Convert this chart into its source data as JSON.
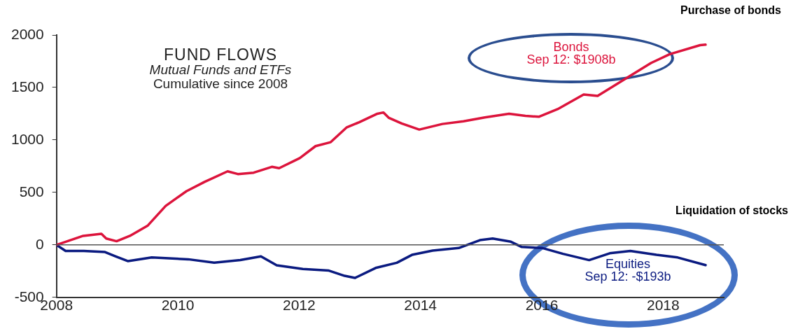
{
  "chart_data": {
    "type": "line",
    "title": "FUND FLOWS",
    "subtitle": "Mutual Funds and ETFs",
    "annotations": [
      "Cumulative since 2008",
      "Sep 12: $1908b",
      "Sep 12: -$193b",
      "Purchase of bonds",
      "Liquidation of stocks"
    ],
    "xlim": [
      2008,
      2019
    ],
    "xticks": [
      2008,
      2010,
      2012,
      2014,
      2016,
      2018
    ],
    "ylim": [
      -500,
      2000
    ],
    "yticks": [
      -500,
      0,
      500,
      1000,
      1500,
      2000
    ],
    "grid": false,
    "legend": false,
    "marker": "none",
    "line_style": "solid",
    "ref_lines": [
      {
        "axis": "y",
        "value": 0,
        "color": "#555555"
      }
    ],
    "series": [
      {
        "name": "Bonds",
        "color": "#dc143c",
        "x": [
          2008,
          2008.44,
          2008.74,
          2008.82,
          2008.99,
          2009.21,
          2009.5,
          2009.8,
          2010.14,
          2010.44,
          2010.82,
          2010.99,
          2011.25,
          2011.55,
          2011.67,
          2012.01,
          2012.27,
          2012.52,
          2012.78,
          2012.99,
          2013.29,
          2013.39,
          2013.48,
          2013.69,
          2013.98,
          2014.36,
          2014.71,
          2015.06,
          2015.46,
          2015.73,
          2015.95,
          2016.26,
          2016.69,
          2016.92,
          2017.36,
          2017.8,
          2018.11,
          2018.61,
          2018.7
        ],
        "values": [
          0,
          86,
          106,
          61,
          35,
          86,
          182,
          372,
          511,
          600,
          701,
          675,
          688,
          744,
          731,
          827,
          941,
          979,
          1118,
          1169,
          1250,
          1262,
          1210,
          1157,
          1099,
          1152,
          1178,
          1215,
          1249,
          1230,
          1221,
          1293,
          1433,
          1419,
          1576,
          1733,
          1817,
          1903,
          1908
        ]
      },
      {
        "name": "Equities",
        "color": "#0a1a80",
        "x": [
          2008,
          2008.15,
          2008.45,
          2008.8,
          2008.97,
          2009.18,
          2009.57,
          2010.17,
          2010.6,
          2011.03,
          2011.37,
          2011.63,
          2012.06,
          2012.49,
          2012.75,
          2012.92,
          2013.26,
          2013.61,
          2013.86,
          2014.2,
          2014.63,
          2014.98,
          2015.19,
          2015.49,
          2015.67,
          2016.01,
          2016.35,
          2016.78,
          2017.12,
          2017.46,
          2017.89,
          2018.24,
          2018.7
        ],
        "values": [
          0,
          -58,
          -58,
          -68,
          -108,
          -155,
          -120,
          -137,
          -170,
          -145,
          -109,
          -195,
          -230,
          -245,
          -295,
          -315,
          -220,
          -170,
          -95,
          -55,
          -30,
          45,
          60,
          30,
          -20,
          -30,
          -85,
          -145,
          -80,
          -58,
          -95,
          -120,
          -193
        ]
      }
    ]
  }
}
